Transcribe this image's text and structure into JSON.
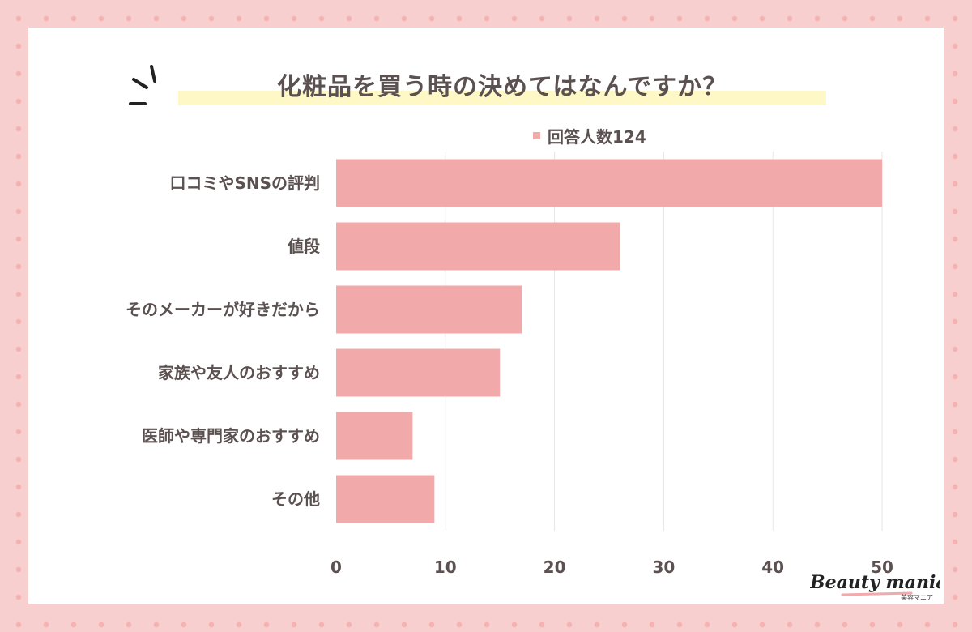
{
  "title": "化粧品を買う時の決めてはなんですか？",
  "chart_data": {
    "type": "bar",
    "orientation": "horizontal",
    "categories": [
      "口コミやSNSの評判",
      "値段",
      "そのメーカーが好きだから",
      "家族や友人のおすすめ",
      "医師や専門家のおすすめ",
      "その他"
    ],
    "series": [
      {
        "name": "回答人数124",
        "values": [
          50,
          26,
          17,
          15,
          7,
          9
        ]
      }
    ],
    "xlim": [
      0,
      50
    ],
    "xticks": [
      0,
      10,
      20,
      30,
      40,
      50
    ],
    "grid": true,
    "legend_position": "top",
    "bar_color": "#f2a9a9"
  },
  "logo": {
    "text": "Beauty mania",
    "subtext": "美容マニア"
  },
  "colors": {
    "background": "#f8cfcf",
    "dots": "#f3b3b3",
    "highlight": "#fdf8c6",
    "text": "#5b5150"
  }
}
